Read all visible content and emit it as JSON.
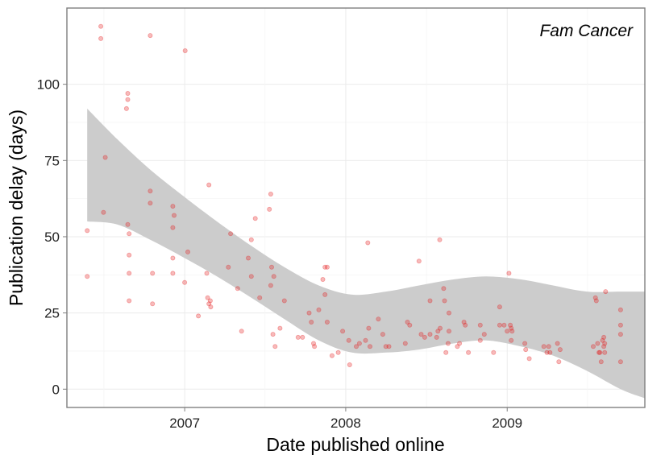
{
  "chart_data": {
    "type": "scatter",
    "title": "",
    "xlabel": "Date published online",
    "ylabel": "Publication delay (days)",
    "annotation": "Fam Cancer",
    "x_ticks": [
      "2007",
      "2008",
      "2009"
    ],
    "y_ticks": [
      "0",
      "25",
      "50",
      "75",
      "100"
    ],
    "xlim": [
      "2006-04-09",
      "2009-11-09"
    ],
    "ylim": [
      -6,
      125
    ],
    "grid": true,
    "legend": "none",
    "point_color": "#e41a1c",
    "band_color": "#cccccc",
    "smooth": {
      "x": [
        "2006-05-25",
        "2006-08-01",
        "2006-10-15",
        "2007-01-01",
        "2007-03-15",
        "2007-06-01",
        "2007-08-15",
        "2007-11-01",
        "2008-01-15",
        "2008-04-01",
        "2008-06-15",
        "2008-09-01",
        "2008-11-15",
        "2009-02-01",
        "2009-04-15",
        "2009-07-01",
        "2009-09-15",
        "2009-11-09"
      ],
      "lower": [
        55,
        54,
        49,
        43,
        37,
        30,
        23,
        16,
        12,
        12,
        13,
        15,
        16,
        14,
        11,
        6,
        0,
        -3
      ],
      "upper": [
        92,
        82,
        72,
        63,
        55,
        47,
        40,
        34,
        31,
        32,
        34,
        36,
        37,
        36,
        34,
        32,
        32,
        32
      ]
    },
    "points": [
      {
        "x": "2006-05-25",
        "y": 52
      },
      {
        "x": "2006-05-25",
        "y": 37
      },
      {
        "x": "2006-06-25",
        "y": 119
      },
      {
        "x": "2006-06-25",
        "y": 115
      },
      {
        "x": "2006-07-01",
        "y": 58
      },
      {
        "x": "2006-07-05",
        "y": 76
      },
      {
        "x": "2006-08-25",
        "y": 97
      },
      {
        "x": "2006-08-25",
        "y": 95
      },
      {
        "x": "2006-08-22",
        "y": 92
      },
      {
        "x": "2006-08-25",
        "y": 54
      },
      {
        "x": "2006-08-28",
        "y": 51
      },
      {
        "x": "2006-08-28",
        "y": 44
      },
      {
        "x": "2006-08-28",
        "y": 38
      },
      {
        "x": "2006-08-28",
        "y": 29
      },
      {
        "x": "2006-10-15",
        "y": 116
      },
      {
        "x": "2006-10-15",
        "y": 65
      },
      {
        "x": "2006-10-15",
        "y": 61
      },
      {
        "x": "2006-10-20",
        "y": 38
      },
      {
        "x": "2006-10-20",
        "y": 28
      },
      {
        "x": "2006-12-05",
        "y": 60
      },
      {
        "x": "2006-12-08",
        "y": 57
      },
      {
        "x": "2006-12-05",
        "y": 53
      },
      {
        "x": "2006-12-05",
        "y": 43
      },
      {
        "x": "2006-12-05",
        "y": 38
      },
      {
        "x": "2007-01-02",
        "y": 111
      },
      {
        "x": "2007-01-08",
        "y": 45
      },
      {
        "x": "2007-01-01",
        "y": 35
      },
      {
        "x": "2007-02-01",
        "y": 24
      },
      {
        "x": "2007-02-25",
        "y": 67
      },
      {
        "x": "2007-02-20",
        "y": 38
      },
      {
        "x": "2007-02-22",
        "y": 30
      },
      {
        "x": "2007-02-28",
        "y": 29
      },
      {
        "x": "2007-02-25",
        "y": 28
      },
      {
        "x": "2007-03-01",
        "y": 27
      },
      {
        "x": "2007-04-15",
        "y": 51
      },
      {
        "x": "2007-04-10",
        "y": 40
      },
      {
        "x": "2007-05-01",
        "y": 33
      },
      {
        "x": "2007-05-10",
        "y": 19
      },
      {
        "x": "2007-05-25",
        "y": 43
      },
      {
        "x": "2007-06-01",
        "y": 49
      },
      {
        "x": "2007-06-01",
        "y": 37
      },
      {
        "x": "2007-06-10",
        "y": 56
      },
      {
        "x": "2007-06-20",
        "y": 30
      },
      {
        "x": "2007-07-15",
        "y": 64
      },
      {
        "x": "2007-07-12",
        "y": 59
      },
      {
        "x": "2007-07-17",
        "y": 40
      },
      {
        "x": "2007-07-15",
        "y": 34
      },
      {
        "x": "2007-07-22",
        "y": 37
      },
      {
        "x": "2007-07-20",
        "y": 18
      },
      {
        "x": "2007-07-25",
        "y": 14
      },
      {
        "x": "2007-08-05",
        "y": 20
      },
      {
        "x": "2007-08-15",
        "y": 29
      },
      {
        "x": "2007-09-15",
        "y": 17
      },
      {
        "x": "2007-09-25",
        "y": 17
      },
      {
        "x": "2007-10-10",
        "y": 25
      },
      {
        "x": "2007-10-15",
        "y": 22
      },
      {
        "x": "2007-10-20",
        "y": 15
      },
      {
        "x": "2007-10-22",
        "y": 14
      },
      {
        "x": "2007-11-01",
        "y": 26
      },
      {
        "x": "2007-11-10",
        "y": 36
      },
      {
        "x": "2007-11-15",
        "y": 40
      },
      {
        "x": "2007-11-20",
        "y": 40
      },
      {
        "x": "2007-11-15",
        "y": 31
      },
      {
        "x": "2007-11-20",
        "y": 22
      },
      {
        "x": "2007-12-01",
        "y": 11
      },
      {
        "x": "2007-12-15",
        "y": 12
      },
      {
        "x": "2007-12-25",
        "y": 19
      },
      {
        "x": "2008-01-08",
        "y": 16
      },
      {
        "x": "2008-01-10",
        "y": 8
      },
      {
        "x": "2008-01-25",
        "y": 14
      },
      {
        "x": "2008-02-01",
        "y": 15
      },
      {
        "x": "2008-02-15",
        "y": 16
      },
      {
        "x": "2008-02-20",
        "y": 48
      },
      {
        "x": "2008-02-22",
        "y": 20
      },
      {
        "x": "2008-02-25",
        "y": 14
      },
      {
        "x": "2008-03-15",
        "y": 23
      },
      {
        "x": "2008-03-25",
        "y": 18
      },
      {
        "x": "2008-04-01",
        "y": 14
      },
      {
        "x": "2008-04-08",
        "y": 14
      },
      {
        "x": "2008-05-15",
        "y": 15
      },
      {
        "x": "2008-05-20",
        "y": 22
      },
      {
        "x": "2008-05-25",
        "y": 21
      },
      {
        "x": "2008-06-15",
        "y": 42
      },
      {
        "x": "2008-06-20",
        "y": 18
      },
      {
        "x": "2008-06-28",
        "y": 17
      },
      {
        "x": "2008-07-10",
        "y": 29
      },
      {
        "x": "2008-07-10",
        "y": 18
      },
      {
        "x": "2008-07-25",
        "y": 17
      },
      {
        "x": "2008-07-28",
        "y": 19
      },
      {
        "x": "2008-08-01",
        "y": 49
      },
      {
        "x": "2008-08-02",
        "y": 20
      },
      {
        "x": "2008-08-10",
        "y": 33
      },
      {
        "x": "2008-08-12",
        "y": 29
      },
      {
        "x": "2008-08-15",
        "y": 12
      },
      {
        "x": "2008-08-20",
        "y": 15
      },
      {
        "x": "2008-08-22",
        "y": 19
      },
      {
        "x": "2008-08-22",
        "y": 25
      },
      {
        "x": "2008-09-10",
        "y": 14
      },
      {
        "x": "2008-09-15",
        "y": 15
      },
      {
        "x": "2008-09-25",
        "y": 22
      },
      {
        "x": "2008-09-28",
        "y": 21
      },
      {
        "x": "2008-10-05",
        "y": 12
      },
      {
        "x": "2008-11-01",
        "y": 21
      },
      {
        "x": "2008-11-01",
        "y": 16
      },
      {
        "x": "2008-11-10",
        "y": 18
      },
      {
        "x": "2008-12-01",
        "y": 12
      },
      {
        "x": "2008-12-15",
        "y": 21
      },
      {
        "x": "2008-12-15",
        "y": 27
      },
      {
        "x": "2008-12-25",
        "y": 21
      },
      {
        "x": "2009-01-01",
        "y": 19
      },
      {
        "x": "2009-01-05",
        "y": 38
      },
      {
        "x": "2009-01-08",
        "y": 21
      },
      {
        "x": "2009-01-10",
        "y": 20
      },
      {
        "x": "2009-01-10",
        "y": 16
      },
      {
        "x": "2009-01-12",
        "y": 19
      },
      {
        "x": "2009-02-10",
        "y": 15
      },
      {
        "x": "2009-02-12",
        "y": 13
      },
      {
        "x": "2009-02-20",
        "y": 10
      },
      {
        "x": "2009-03-25",
        "y": 14
      },
      {
        "x": "2009-04-01",
        "y": 12
      },
      {
        "x": "2009-04-05",
        "y": 14
      },
      {
        "x": "2009-04-08",
        "y": 12
      },
      {
        "x": "2009-04-25",
        "y": 15
      },
      {
        "x": "2009-05-01",
        "y": 13
      },
      {
        "x": "2009-04-28",
        "y": 9
      },
      {
        "x": "2009-07-15",
        "y": 14
      },
      {
        "x": "2009-07-20",
        "y": 30
      },
      {
        "x": "2009-07-22",
        "y": 29
      },
      {
        "x": "2009-07-25",
        "y": 15
      },
      {
        "x": "2009-07-28",
        "y": 12
      },
      {
        "x": "2009-07-30",
        "y": 12
      },
      {
        "x": "2009-08-02",
        "y": 9
      },
      {
        "x": "2009-08-05",
        "y": 16
      },
      {
        "x": "2009-08-08",
        "y": 17
      },
      {
        "x": "2009-08-08",
        "y": 14
      },
      {
        "x": "2009-08-10",
        "y": 15
      },
      {
        "x": "2009-08-10",
        "y": 12
      },
      {
        "x": "2009-08-12",
        "y": 32
      },
      {
        "x": "2009-09-15",
        "y": 26
      },
      {
        "x": "2009-09-15",
        "y": 21
      },
      {
        "x": "2009-09-15",
        "y": 18
      },
      {
        "x": "2009-09-15",
        "y": 9
      }
    ]
  }
}
